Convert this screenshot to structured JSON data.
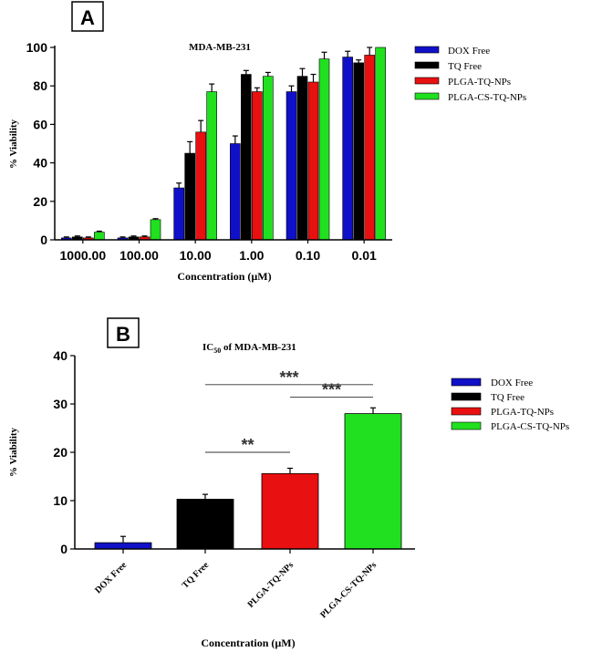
{
  "chart_data": [
    {
      "panel_label": "A",
      "type": "bar",
      "title": "MDA-MB-231",
      "xlabel": "Concentration (µM)",
      "ylabel": "% Viability",
      "ylim": [
        0,
        100
      ],
      "yticks": [
        "0",
        "20",
        "40",
        "60",
        "80",
        "100"
      ],
      "categories": [
        "1000.00",
        "100.00",
        "10.00",
        "1.00",
        "0.10",
        "0.01"
      ],
      "series": [
        {
          "name": "DOX Free",
          "color": "#1010c8",
          "values": [
            1,
            1,
            27,
            50,
            77,
            95
          ],
          "errors": [
            0.5,
            0.5,
            2.5,
            4,
            3,
            3
          ]
        },
        {
          "name": "TQ Free",
          "color": "#000000",
          "values": [
            1.5,
            1.5,
            45,
            86,
            85,
            92
          ],
          "errors": [
            0.5,
            0.5,
            6,
            2,
            4,
            1.5
          ]
        },
        {
          "name": "PLGA-TQ-NPs",
          "color": "#e81010",
          "values": [
            1,
            1.5,
            56,
            77,
            82,
            96
          ],
          "errors": [
            0.5,
            0.5,
            6,
            2,
            4,
            4
          ]
        },
        {
          "name": "PLGA-CS-TQ-NPs",
          "color": "#20e020",
          "values": [
            4,
            10.5,
            77,
            85,
            94,
            100
          ],
          "errors": [
            0.5,
            0.5,
            4,
            2,
            3.5,
            0
          ]
        }
      ],
      "legend_position": "top-right"
    },
    {
      "panel_label": "B",
      "type": "bar",
      "title_main": "IC",
      "title_sub": "50",
      "title_rest": " of MDA-MB-231",
      "xlabel": "Concentration (µM)",
      "ylabel": "% Viability",
      "ylim": [
        0,
        40
      ],
      "yticks": [
        "0",
        "10",
        "20",
        "30",
        "40"
      ],
      "categories": [
        "DOX Free",
        "TQ Free",
        "PLGA-TQ-NPs",
        "PLGA-CS-TQ-NPs"
      ],
      "values": [
        1.3,
        10.3,
        15.6,
        28
      ],
      "errors": [
        1.3,
        1.0,
        1.1,
        1.2
      ],
      "colors": [
        "#1010c8",
        "#000000",
        "#e81010",
        "#20e020"
      ],
      "legend": [
        "DOX Free",
        "TQ Free",
        "PLGA-TQ-NPs",
        "PLGA-CS-TQ-NPs"
      ],
      "legend_position": "right",
      "significance": [
        {
          "from": 1,
          "to": 2,
          "label": "**",
          "level": 20
        },
        {
          "from": 1,
          "to": 3,
          "label": "***",
          "level": 34
        },
        {
          "from": 2,
          "to": 3,
          "label": "***",
          "level": 31.4
        }
      ]
    }
  ]
}
